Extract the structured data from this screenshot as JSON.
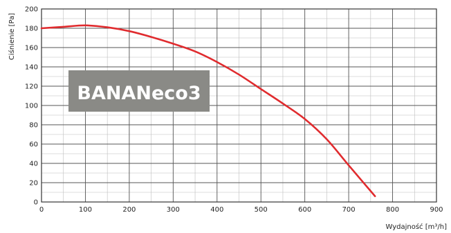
{
  "chart_data": {
    "type": "line",
    "title": "",
    "badge": "BANANeco3",
    "xlabel": "Wydajność [m³/h]",
    "ylabel": "Ciśnienie [Pa]",
    "xlim": [
      0,
      900
    ],
    "ylim": [
      0,
      200
    ],
    "x_ticks": [
      0,
      100,
      200,
      300,
      400,
      500,
      600,
      700,
      800,
      900
    ],
    "y_ticks": [
      0,
      20,
      40,
      60,
      80,
      100,
      120,
      140,
      160,
      180,
      200
    ],
    "x_minor_step": 50,
    "y_minor_step": 10,
    "grid": true,
    "line_color": "#e02b2e",
    "badge_color": "#8a8a86",
    "series": [
      {
        "name": "",
        "x": [
          0,
          50,
          100,
          150,
          200,
          250,
          300,
          350,
          400,
          450,
          500,
          550,
          600,
          650,
          700,
          760
        ],
        "y": [
          180,
          181.5,
          183,
          181,
          177,
          171,
          164,
          156,
          145,
          132,
          117,
          102,
          86,
          65,
          38,
          6
        ]
      }
    ]
  }
}
